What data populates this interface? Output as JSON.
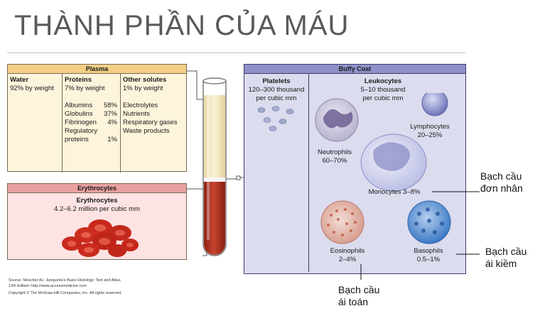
{
  "title": "THÀNH PHẦN CỦA MÁU",
  "plasma": {
    "header": "Plasma",
    "water": {
      "heading": "Water",
      "detail": "92% by weight"
    },
    "proteins": {
      "heading": "Proteins",
      "detail": "7% by weight",
      "items": [
        {
          "name": "Albumins",
          "value": "58%"
        },
        {
          "name": "Globulins",
          "value": "37%"
        },
        {
          "name": "Fibrinogen",
          "value": "4%"
        },
        {
          "name": "Regulatory",
          "value": ""
        },
        {
          "name": "proteins",
          "value": "1%"
        }
      ]
    },
    "other": {
      "heading": "Other solutes",
      "detail": "1% by weight",
      "items": [
        "Electrolytes",
        "Nutrients",
        "Respiratory gases",
        "Waste products"
      ]
    }
  },
  "erythrocytes": {
    "header": "Erythrocytes",
    "title": "Erythrocytes",
    "detail": "4.2–6.2 million per cubic mm"
  },
  "buffy": {
    "header": "Buffy Coat",
    "platelets": {
      "title": "Platelets",
      "line1": "120–300 thousand",
      "line2": "per cubic mm"
    },
    "leukocytes": {
      "title": "Leukocytes",
      "line1": "5–10 thousand",
      "line2": "per cubic mm"
    },
    "neutrophils": {
      "name": "Neutrophils",
      "pct": "60–70%"
    },
    "lymphocytes": {
      "name": "Lymphocytes",
      "pct": "20–25%"
    },
    "monocytes": {
      "label": "Monocytes 3–8%"
    },
    "eosinophils": {
      "name": "Eosinophils",
      "pct": "2–4%"
    },
    "basophils": {
      "name": "Basophils",
      "pct": "0.5–1%"
    }
  },
  "annotations": {
    "monocyte_line1": "Bạch cầu",
    "monocyte_line2": "đơn nhân",
    "basophil_line1": "Bạch cầu",
    "basophil_line2": "ái kiềm",
    "eosinophil_line1": "Bạch cầu",
    "eosinophil_line2": "ái toán"
  },
  "source": {
    "line1": "Source: Mescher AL: Junqueira's Basic Histology: Text and Atlas,",
    "line2": "12th Edition: http://www.accessmedicine.com",
    "line3": "Copyright © The McGraw-Hill Companies, Inc. All rights reserved."
  },
  "colors": {
    "plasma_bg": "#fdf4dc",
    "plasma_header": "#f2cf85",
    "erythrocyte_bg": "#fde3e3",
    "erythrocyte_header": "#e8a0a0",
    "buffy_bg": "#dcdcef",
    "buffy_header": "#8f90c8",
    "blood": "#b33020"
  }
}
